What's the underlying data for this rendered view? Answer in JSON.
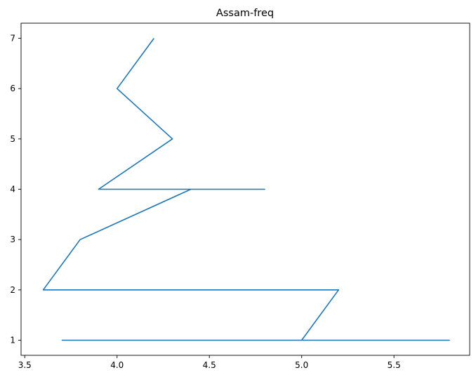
{
  "chart_data": {
    "type": "line",
    "title": "Assam-freq",
    "xlabel": "",
    "ylabel": "",
    "xlim": [
      3.48,
      5.91
    ],
    "ylim": [
      0.7,
      7.3
    ],
    "xticks": [
      3.5,
      4.0,
      4.5,
      5.0,
      5.5
    ],
    "xtick_labels": [
      "3.5",
      "4.0",
      "4.5",
      "5.0",
      "5.5"
    ],
    "yticks": [
      1,
      2,
      3,
      4,
      5,
      6,
      7
    ],
    "ytick_labels": [
      "1",
      "2",
      "3",
      "4",
      "5",
      "6",
      "7"
    ],
    "grid": false,
    "series": [
      {
        "color": "#1f77b4",
        "x": [
          3.7,
          5.8,
          5.0,
          5.2,
          3.6,
          3.8,
          4.4,
          3.9,
          4.8,
          4.4,
          3.9,
          4.3,
          4.0,
          4.2
        ],
        "y": [
          1,
          1,
          1,
          2,
          2,
          3,
          4,
          4,
          4,
          4,
          4,
          5,
          6,
          7
        ]
      }
    ]
  }
}
